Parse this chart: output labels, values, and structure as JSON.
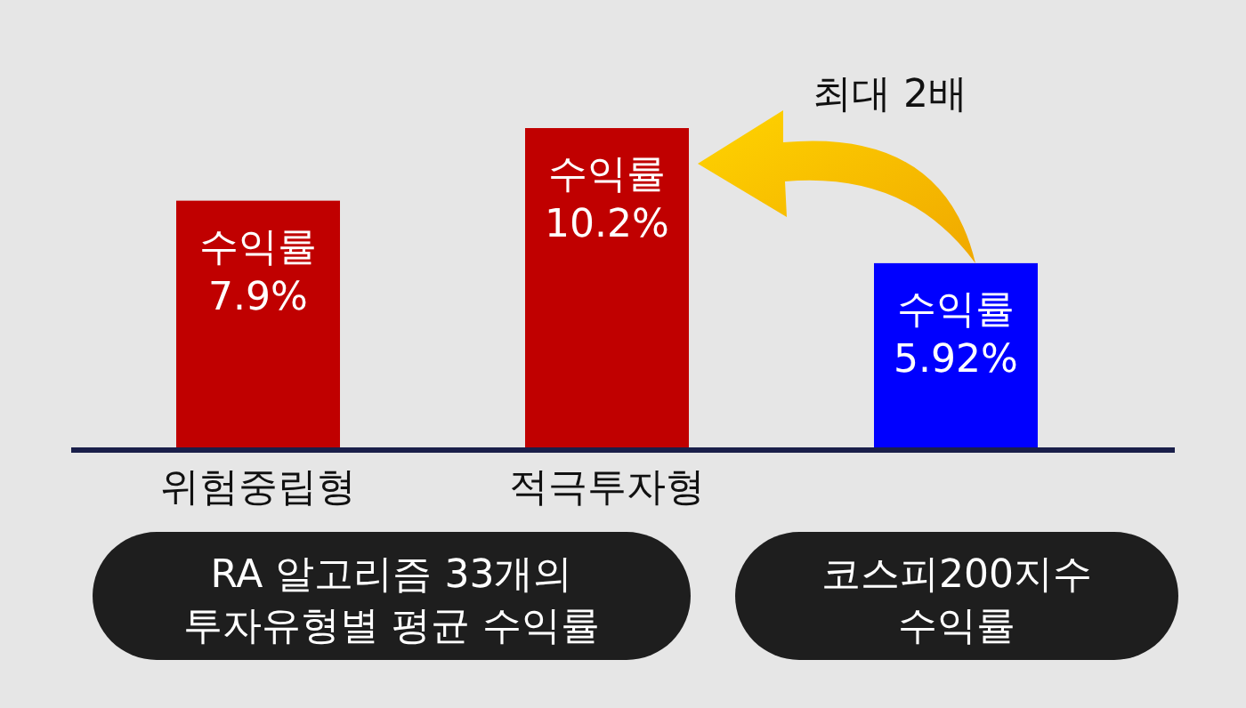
{
  "chart_data": {
    "type": "bar",
    "categories": [
      "위험중립형",
      "적극투자형",
      null
    ],
    "values": [
      7.9,
      10.2,
      5.92
    ],
    "colors": [
      "#c00000",
      "#c00000",
      "#0000ff"
    ],
    "value_labels": [
      "수익률\n7.9%",
      "수익률\n10.2%",
      "수익률\n5.92%"
    ],
    "annotations": [
      "RA 알고리즘 33개의\n투자유형별 평균 수익률",
      "코스피200지수\n수익률",
      "최대 2배"
    ]
  }
}
